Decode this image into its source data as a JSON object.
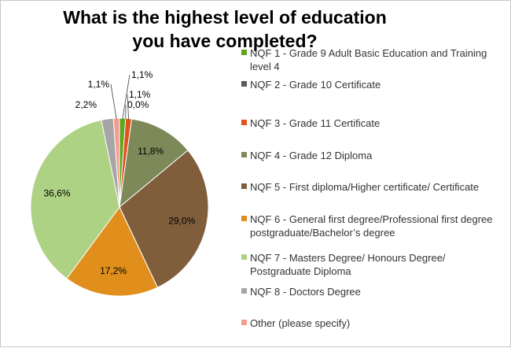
{
  "chart_data": {
    "type": "pie",
    "title": "What is the highest level of education you have completed?",
    "slices": [
      {
        "label": "NQF 1 - Grade 9 Adult Basic Education and Training level 4",
        "value": 1.1,
        "display": "1,1%",
        "color": "#5fa51f"
      },
      {
        "label": "NQF 2 - Grade 10 Certificate",
        "value": 0.0,
        "display": "0,0%",
        "color": "#595959"
      },
      {
        "label": "NQF 3 - Grade 11 Certificate",
        "value": 1.1,
        "display": "1,1%",
        "color": "#e0531f"
      },
      {
        "label": "NQF 4 - Grade 12 Diploma",
        "value": 11.8,
        "display": "11,8%",
        "color": "#7d8959"
      },
      {
        "label": "NQF 5 - First diploma/Higher certificate/ Certificate",
        "value": 29.0,
        "display": "29,0%",
        "color": "#805d3b"
      },
      {
        "label": "NQF 6 - General first degree/Professional first degree postgraduate/Bachelor’s degree",
        "value": 17.2,
        "display": "17,2%",
        "color": "#e08f1d"
      },
      {
        "label": "NQF 7 - Masters Degree/ Honours Degree/ Postgraduate Diploma",
        "value": 36.6,
        "display": "36,6%",
        "color": "#aed283"
      },
      {
        "label": "NQF 8 - Doctors Degree",
        "value": 2.2,
        "display": "2,2%",
        "color": "#a6a6a6"
      },
      {
        "label": "Other (please specify)",
        "value": 1.1,
        "display": "1,1%",
        "color": "#f49c91"
      }
    ],
    "legend_placement": "right"
  }
}
